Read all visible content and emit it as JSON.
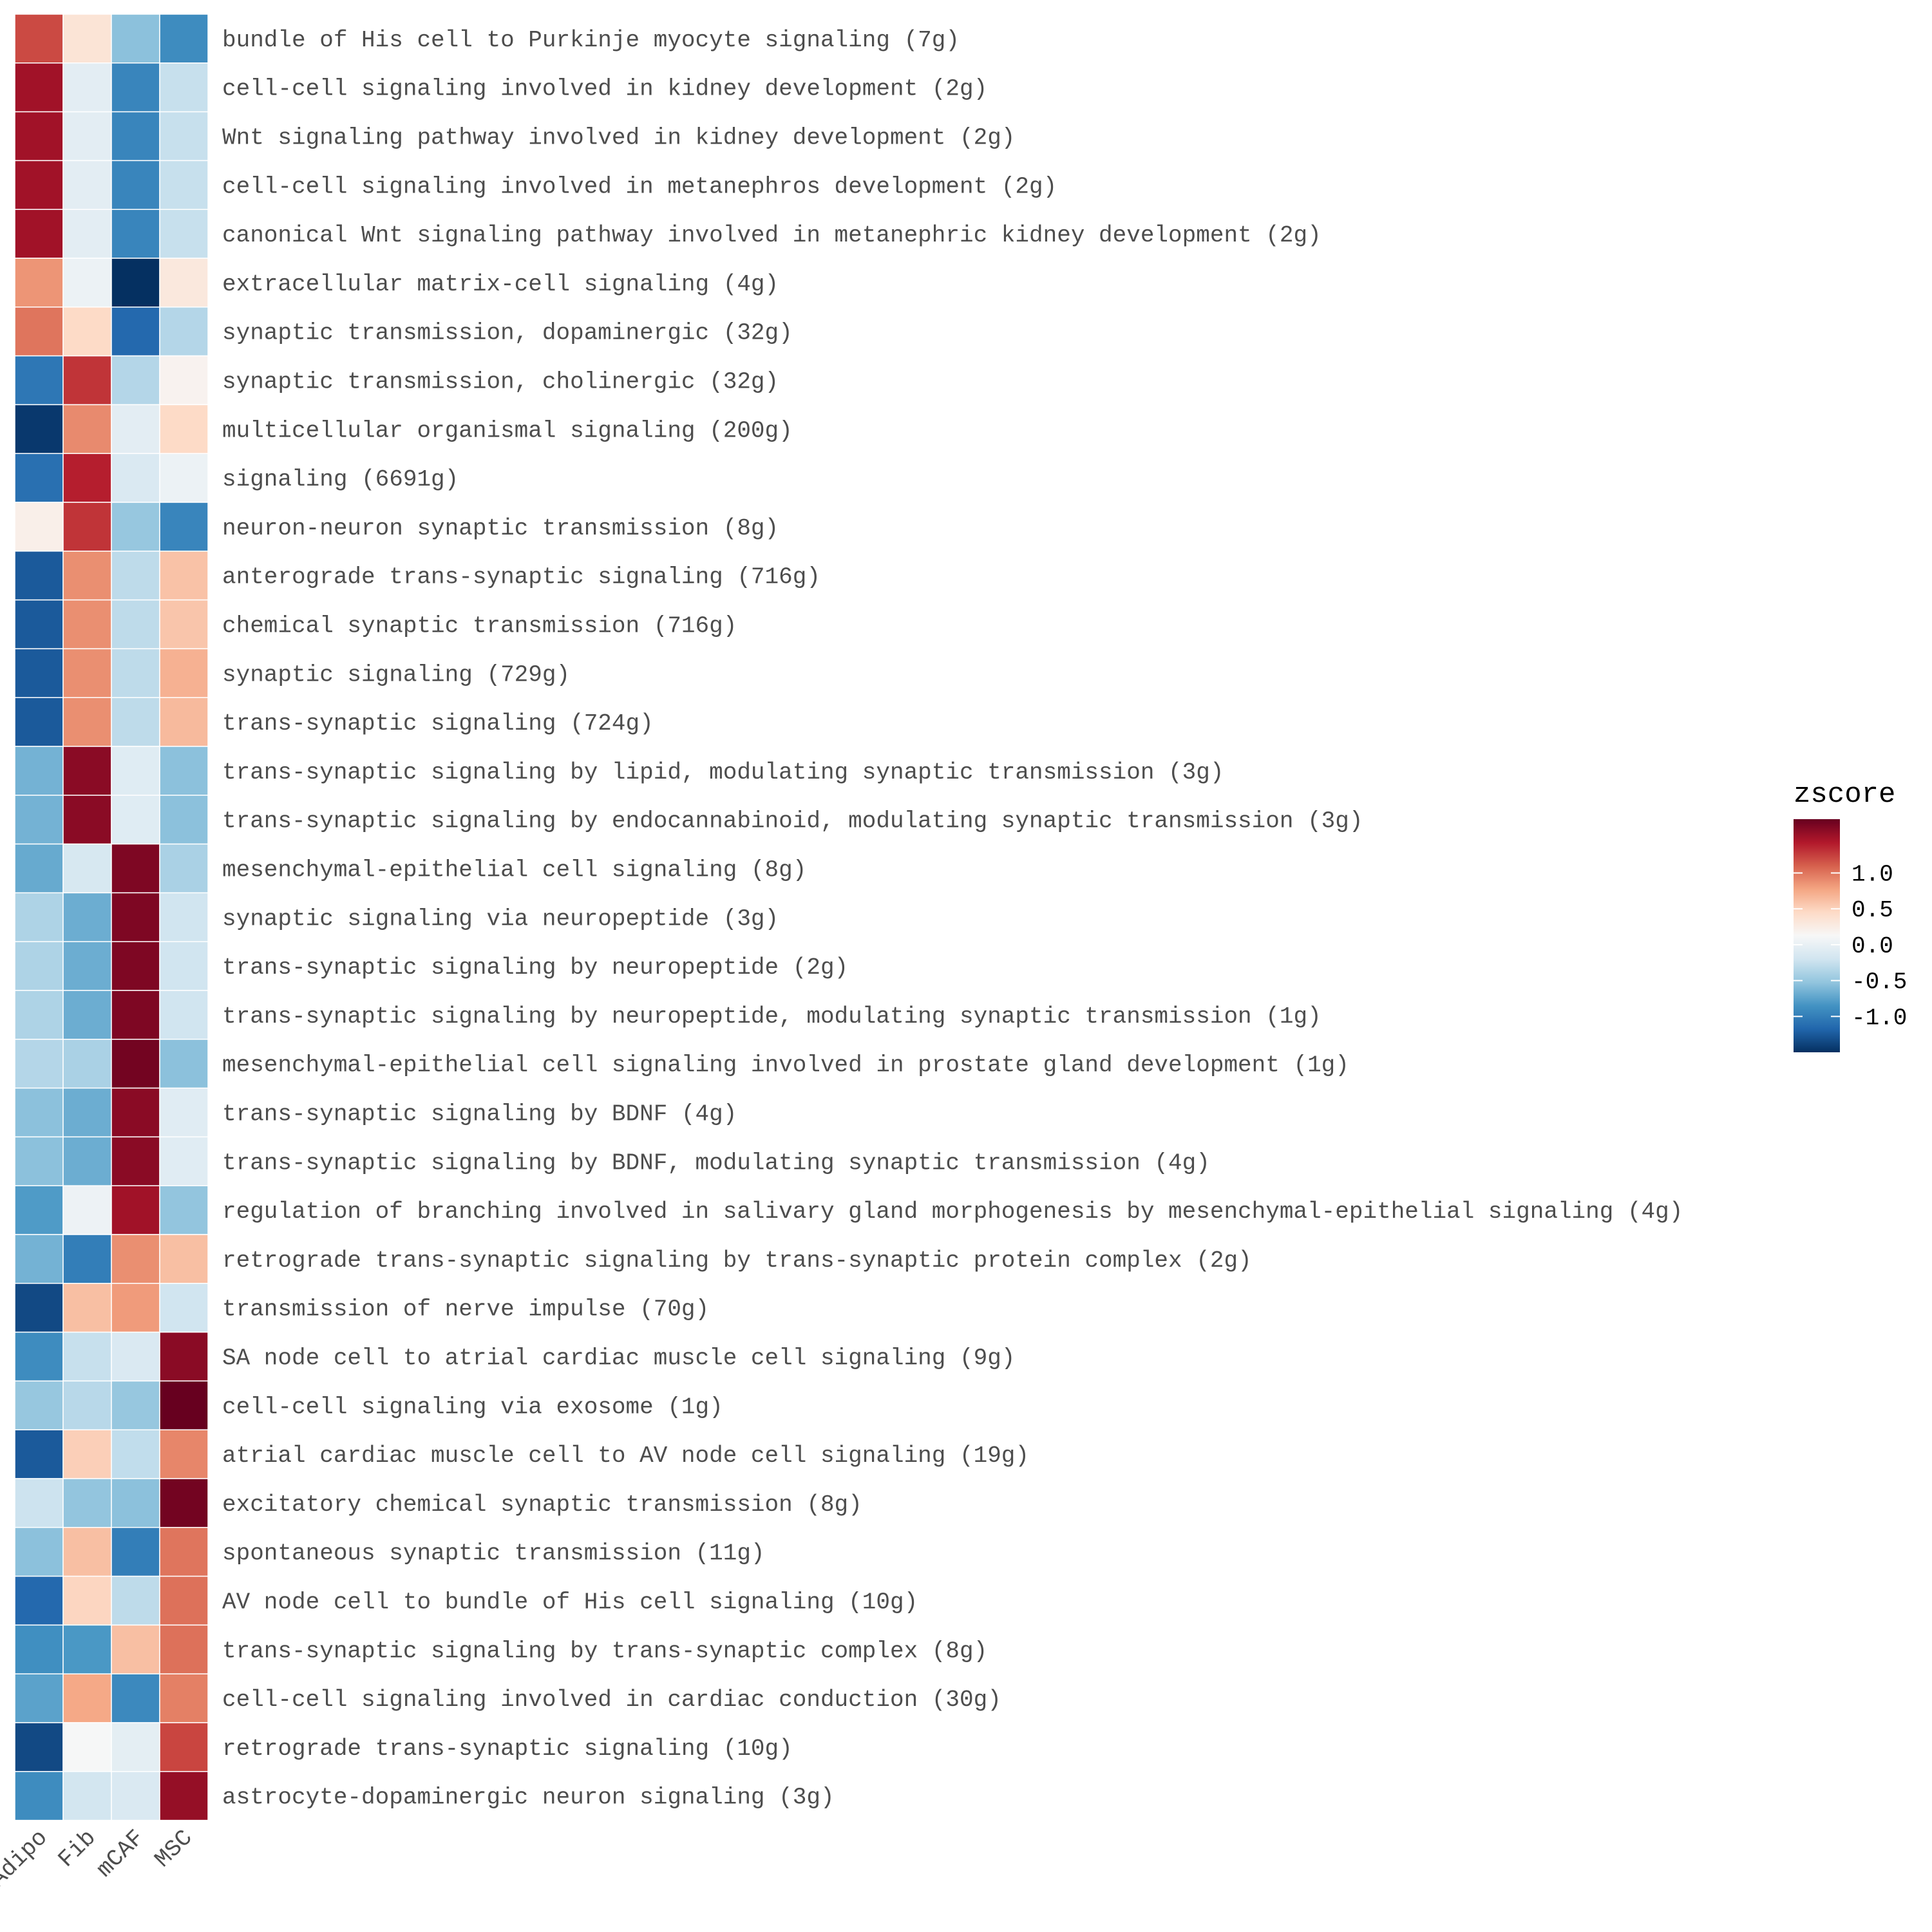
{
  "chart_data": {
    "type": "heatmap",
    "columns": [
      "Adipo",
      "Fib",
      "mCAF",
      "MSC"
    ],
    "rows": [
      {
        "label": "bundle of His cell to Purkinje myocyte signaling (7g)",
        "values": [
          1.2,
          0.35,
          -0.55,
          -0.9
        ]
      },
      {
        "label": "cell-cell signaling involved in kidney development (2g)",
        "values": [
          1.5,
          -0.05,
          -0.95,
          -0.25
        ]
      },
      {
        "label": "Wnt signaling pathway involved in kidney development (2g)",
        "values": [
          1.5,
          -0.05,
          -0.95,
          -0.25
        ]
      },
      {
        "label": "cell-cell signaling involved in metanephros development (2g)",
        "values": [
          1.5,
          -0.05,
          -0.95,
          -0.25
        ]
      },
      {
        "label": "canonical Wnt signaling pathway involved in metanephric kidney development (2g)",
        "values": [
          1.5,
          -0.05,
          -0.95,
          -0.25
        ]
      },
      {
        "label": "extracellular matrix-cell signaling (4g)",
        "values": [
          0.85,
          0.03,
          -1.5,
          0.3
        ]
      },
      {
        "label": "synaptic transmission, dopaminergic (32g)",
        "values": [
          1.0,
          0.45,
          -1.15,
          -0.35
        ]
      },
      {
        "label": "synaptic transmission, cholinergic (32g)",
        "values": [
          -1.05,
          1.3,
          -0.35,
          0.18
        ]
      },
      {
        "label": "multicellular organismal signaling (200g)",
        "values": [
          -1.45,
          0.9,
          -0.05,
          0.45
        ]
      },
      {
        "label": "signaling (6691g)",
        "values": [
          -1.1,
          1.4,
          -0.12,
          0.03
        ]
      },
      {
        "label": "neuron-neuron synaptic transmission (8g)",
        "values": [
          0.22,
          1.3,
          -0.5,
          -0.95
        ]
      },
      {
        "label": "anterograde trans-synaptic signaling (716g)",
        "values": [
          -1.25,
          0.88,
          -0.3,
          0.6
        ]
      },
      {
        "label": "chemical synaptic transmission (716g)",
        "values": [
          -1.25,
          0.88,
          -0.3,
          0.58
        ]
      },
      {
        "label": "synaptic signaling (729g)",
        "values": [
          -1.25,
          0.88,
          -0.3,
          0.7
        ]
      },
      {
        "label": "trans-synaptic signaling (724g)",
        "values": [
          -1.25,
          0.88,
          -0.3,
          0.65
        ]
      },
      {
        "label": "trans-synaptic signaling by lipid, modulating synaptic transmission (3g)",
        "values": [
          -0.65,
          1.6,
          -0.08,
          -0.55
        ]
      },
      {
        "label": "trans-synaptic signaling by endocannabinoid, modulating synaptic transmission (3g)",
        "values": [
          -0.65,
          1.6,
          -0.08,
          -0.55
        ]
      },
      {
        "label": "mesenchymal-epithelial cell signaling (8g)",
        "values": [
          -0.7,
          -0.15,
          1.65,
          -0.4
        ]
      },
      {
        "label": "synaptic signaling via neuropeptide (3g)",
        "values": [
          -0.38,
          -0.68,
          1.65,
          -0.2
        ]
      },
      {
        "label": "trans-synaptic signaling by neuropeptide (2g)",
        "values": [
          -0.38,
          -0.68,
          1.65,
          -0.2
        ]
      },
      {
        "label": "trans-synaptic signaling by neuropeptide, modulating synaptic transmission (1g)",
        "values": [
          -0.38,
          -0.68,
          1.65,
          -0.2
        ]
      },
      {
        "label": "mesenchymal-epithelial cell signaling involved in prostate gland development (1g)",
        "values": [
          -0.35,
          -0.4,
          1.7,
          -0.55
        ]
      },
      {
        "label": "trans-synaptic signaling by BDNF (4g)",
        "values": [
          -0.55,
          -0.68,
          1.6,
          -0.07
        ]
      },
      {
        "label": "trans-synaptic signaling by BDNF, modulating synaptic transmission (4g)",
        "values": [
          -0.55,
          -0.68,
          1.6,
          -0.07
        ]
      },
      {
        "label": "regulation of branching involved in salivary gland morphogenesis by mesenchymal-epithelial signaling (4g)",
        "values": [
          -0.8,
          0.04,
          1.5,
          -0.52
        ]
      },
      {
        "label": "retrograde trans-synaptic signaling by trans-synaptic protein complex (2g)",
        "values": [
          -0.65,
          -1.0,
          0.88,
          0.62
        ]
      },
      {
        "label": "transmission of nerve impulse (70g)",
        "values": [
          -1.35,
          0.62,
          0.82,
          -0.2
        ]
      },
      {
        "label": "SA node cell to atrial cardiac muscle cell signaling (9g)",
        "values": [
          -0.9,
          -0.25,
          -0.12,
          1.6
        ]
      },
      {
        "label": "cell-cell signaling via exosome (1g)",
        "values": [
          -0.5,
          -0.33,
          -0.5,
          1.75
        ]
      },
      {
        "label": "atrial cardiac muscle cell to AV node cell signaling (19g)",
        "values": [
          -1.25,
          0.52,
          -0.28,
          0.92
        ]
      },
      {
        "label": "excitatory chemical synaptic transmission (8g)",
        "values": [
          -0.22,
          -0.52,
          -0.55,
          1.7
        ]
      },
      {
        "label": "spontaneous synaptic transmission (11g)",
        "values": [
          -0.55,
          0.62,
          -1.0,
          1.0
        ]
      },
      {
        "label": "AV node cell to bundle of His cell signaling (10g)",
        "values": [
          -1.15,
          0.48,
          -0.3,
          1.02
        ]
      },
      {
        "label": "trans-synaptic signaling by trans-synaptic complex (8g)",
        "values": [
          -0.88,
          -0.82,
          0.62,
          1.02
        ]
      },
      {
        "label": "cell-cell signaling involved in cardiac conduction (30g)",
        "values": [
          -0.75,
          0.75,
          -0.92,
          0.95
        ]
      },
      {
        "label": "retrograde trans-synaptic signaling (10g)",
        "values": [
          -1.35,
          0.12,
          -0.04,
          1.22
        ]
      },
      {
        "label": "astrocyte-dopaminergic neuron signaling (3g)",
        "values": [
          -0.9,
          -0.18,
          -0.12,
          1.55
        ]
      }
    ],
    "legend": {
      "title": "zscore",
      "ticks": [
        {
          "value": 1.0,
          "label": "1.0"
        },
        {
          "value": 0.5,
          "label": "0.5"
        },
        {
          "value": 0.0,
          "label": "0.0"
        },
        {
          "value": -0.5,
          "label": "-0.5"
        },
        {
          "value": -1.0,
          "label": "-1.0"
        }
      ],
      "range": [
        -1.5,
        1.75
      ],
      "placement": "right"
    },
    "colormap": [
      "#053061",
      "#2166ac",
      "#4393c3",
      "#92c5de",
      "#d1e5f0",
      "#f7f7f7",
      "#fddbc7",
      "#f4a582",
      "#d6604d",
      "#b2182b",
      "#67001f"
    ],
    "grid": false
  }
}
